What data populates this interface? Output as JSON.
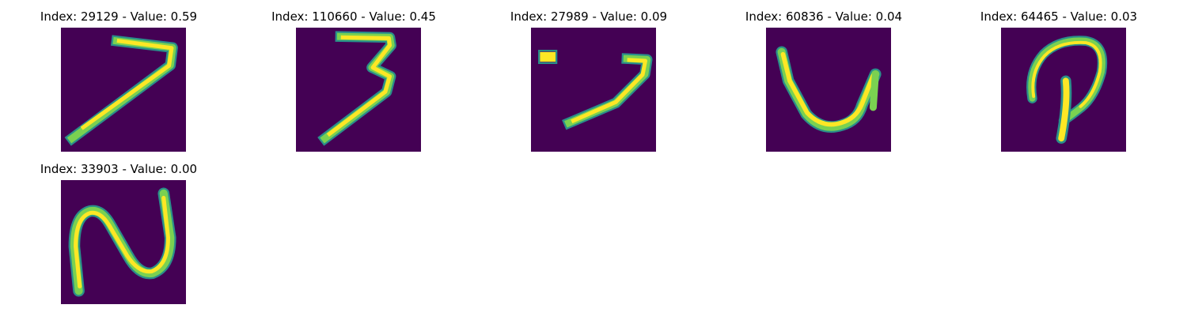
{
  "colors": {
    "background": "#440154",
    "stroke_edge": "#2a8f8a",
    "stroke_mid": "#7ad151",
    "stroke_core": "#fde725"
  },
  "colormap": "viridis",
  "panels": [
    {
      "index": "29129",
      "value": "0.59",
      "title": "Index: 29129 - Value: 0.59",
      "digit": "7"
    },
    {
      "index": "110660",
      "value": "0.45",
      "title": "Index: 110660 - Value: 0.45",
      "digit": "3"
    },
    {
      "index": "27989",
      "value": "0.09",
      "title": "Index: 27989 - Value: 0.09",
      "digit": "7"
    },
    {
      "index": "60836",
      "value": "0.04",
      "title": "Index: 60836 - Value: 0.04",
      "digit": "4"
    },
    {
      "index": "64465",
      "value": "0.03",
      "title": "Index: 64465 - Value: 0.03",
      "digit": "9"
    },
    {
      "index": "33903",
      "value": "0.00",
      "title": "Index: 33903 - Value: 0.00",
      "digit": "2"
    }
  ]
}
